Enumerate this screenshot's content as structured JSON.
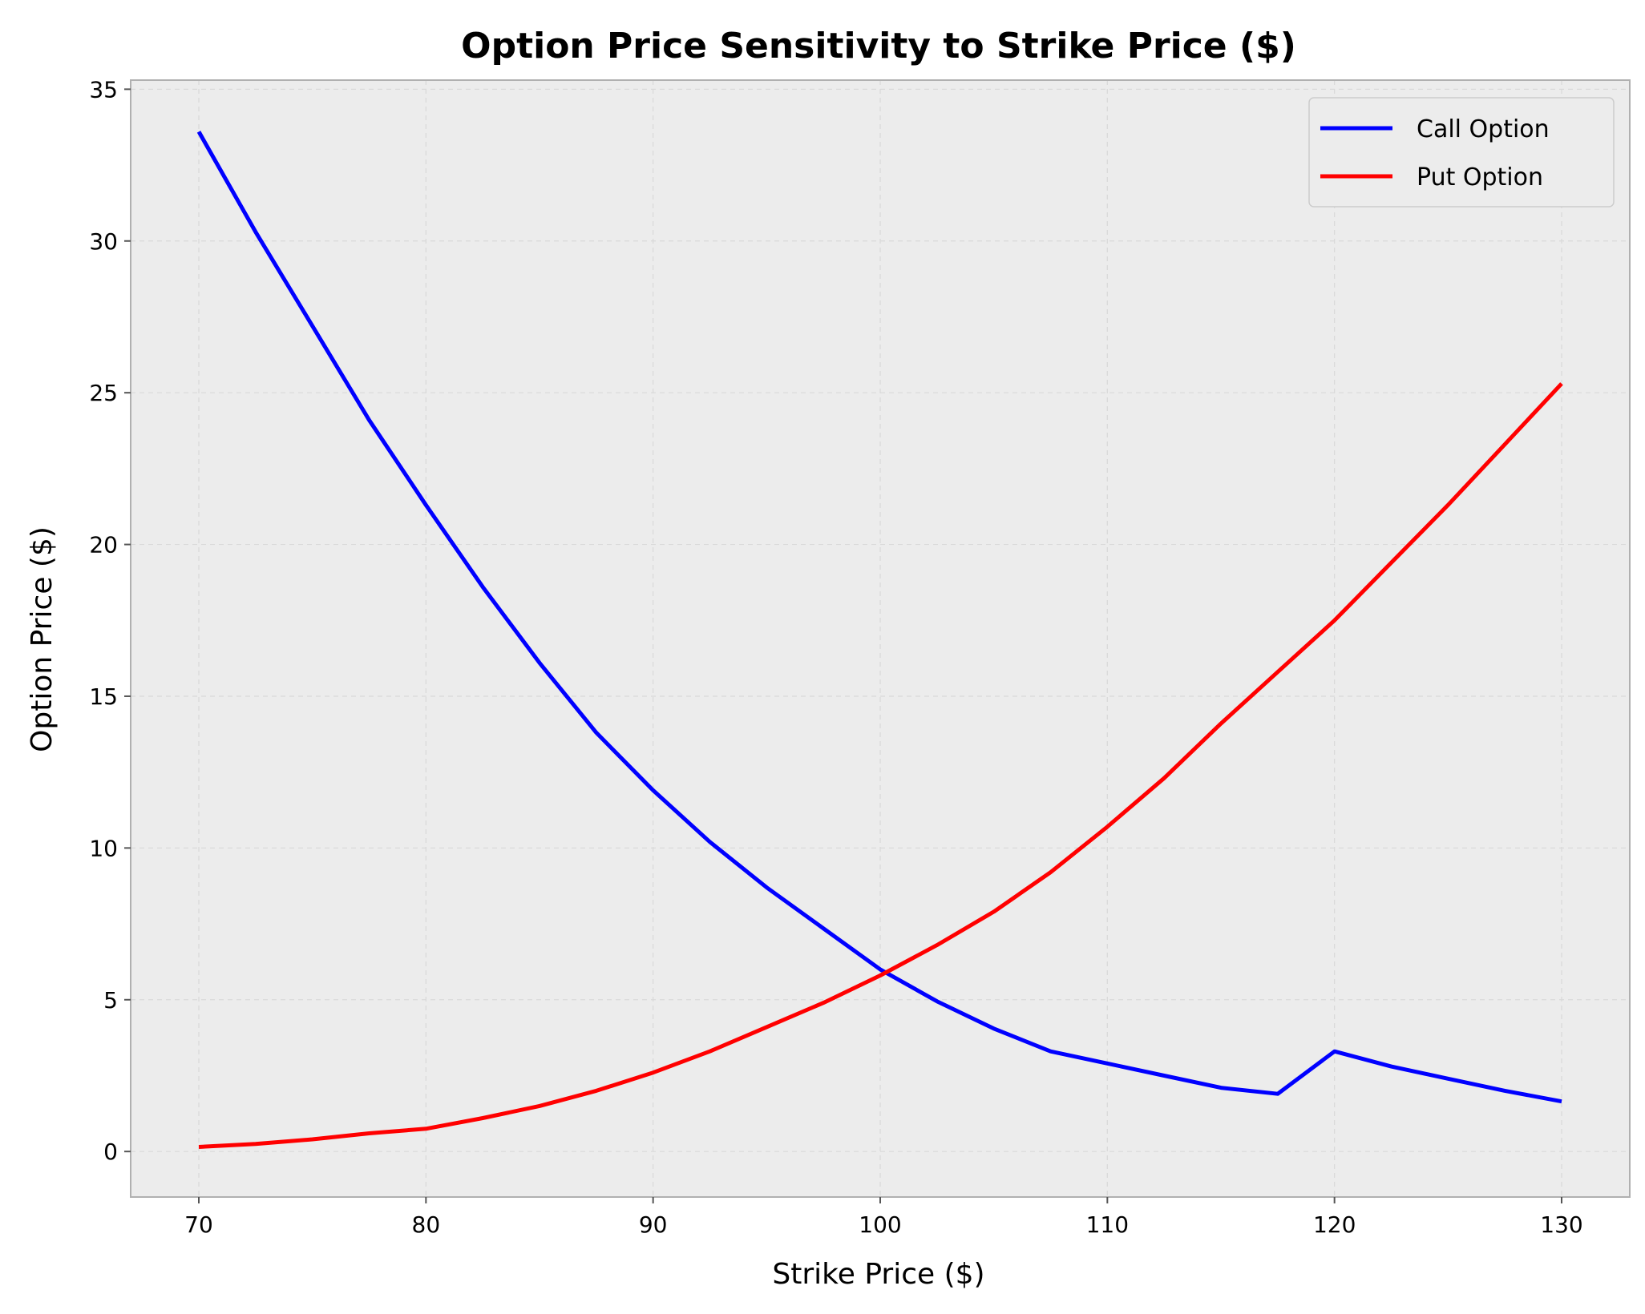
{
  "chart_data": {
    "type": "line",
    "title": "Option Price Sensitivity to Strike Price ($)",
    "xlabel": "Strike Price ($)",
    "ylabel": "Option Price ($)",
    "xlim": [
      67,
      133
    ],
    "ylim": [
      -1.5,
      35.3
    ],
    "xticks": [
      70,
      80,
      90,
      100,
      110,
      120,
      130
    ],
    "yticks": [
      0,
      5,
      10,
      15,
      20,
      25,
      30,
      35
    ],
    "grid": true,
    "legend_position": "top-right",
    "background_color": "#ececec",
    "x": [
      70,
      72.5,
      75,
      77.5,
      80,
      82.5,
      85,
      87.5,
      90,
      92.5,
      95,
      97.5,
      100,
      102.5,
      105,
      107.5,
      110,
      112.5,
      115,
      117.5,
      120,
      122.5,
      125,
      127.5,
      130
    ],
    "series": [
      {
        "name": "Call Option",
        "color": "#0000ff",
        "values": [
          33.6,
          30.3,
          27.2,
          24.1,
          21.3,
          18.6,
          16.1,
          13.8,
          11.9,
          10.2,
          8.7,
          7.35,
          6.0,
          4.95,
          4.05,
          3.3,
          2.9,
          2.5,
          2.1,
          1.9,
          3.3,
          2.8,
          2.4,
          2.0,
          1.65
        ]
      },
      {
        "name": "Put Option",
        "color": "#ff0000",
        "values": [
          0.15,
          0.25,
          0.4,
          0.6,
          0.75,
          1.1,
          1.5,
          2.0,
          2.6,
          3.3,
          4.1,
          4.9,
          5.8,
          6.8,
          7.9,
          9.2,
          10.7,
          12.3,
          14.1,
          15.8,
          17.5,
          19.4,
          21.3,
          23.3,
          25.3
        ]
      }
    ]
  }
}
